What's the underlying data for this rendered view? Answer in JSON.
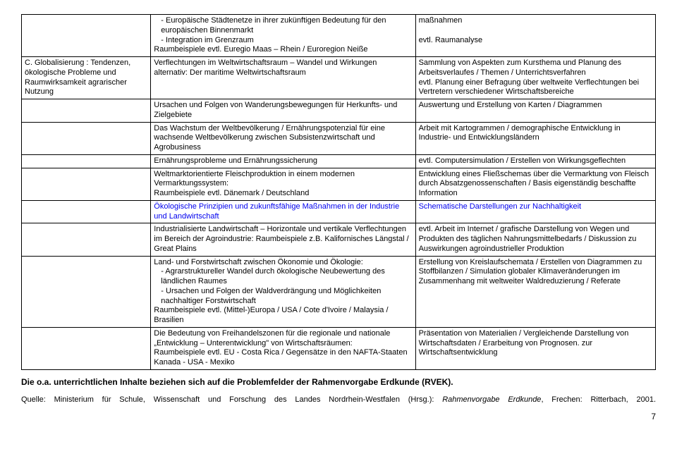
{
  "table": {
    "col_widths": [
      "20%",
      "42%",
      "38%"
    ],
    "border_color": "#000000",
    "background_color": "#ffffff",
    "font_size": 11,
    "rows": [
      {
        "col1": "",
        "col2_items": [
          "Europäische Städtenetze in ihrer zukünftigen Bedeutung für den europäischen Binnenmarkt",
          "Integration im Grenzraum"
        ],
        "col2_tail": "Raumbeispiele evtl. Euregio Maas – Rhein / Euroregion Neiße",
        "col3_a": "maßnahmen",
        "col3_b": "evtl. Raumanalyse"
      },
      {
        "col1": "C. Globalisierung : Tendenzen, ökologische Probleme und Raumwirksamkeit agrarischer Nutzung",
        "col2": "Verflechtungen im Weltwirtschaftsraum – Wandel und Wirkungen\nalternativ: Der maritime Weltwirtschaftsraum",
        "col3": "Sammlung von Aspekten zum Kursthema und Planung des Arbeitsverlaufes / Themen / Unterrichtsverfahren\nevtl. Planung einer Befragung über weltweite Verflechtungen bei Vertretern verschiedener Wirtschaftsbereiche"
      },
      {
        "col1": "",
        "col2": "Ursachen und Folgen von Wanderungsbewegungen für Herkunfts- und Zielgebiete",
        "col3": "Auswertung und Erstellung von Karten / Diagrammen"
      },
      {
        "col1": "",
        "col2": "Das Wachstum der Weltbevölkerung / Ernährungspotenzial für eine wachsende Weltbevölkerung zwischen Subsistenzwirtschaft und Agrobusiness",
        "col3": "Arbeit mit Kartogrammen / demographische Entwicklung in Industrie- und Entwicklungsländern"
      },
      {
        "col1": "",
        "col2": "Ernährungsprobleme und Ernährungssicherung",
        "col3": "evtl. Computersimulation / Erstellen von Wirkungsgeflechten"
      },
      {
        "col1": "",
        "col2": "Weltmarktorientierte Fleischproduktion in einem modernen Vermarktungssystem:\nRaumbeispiele evtl. Dänemark / Deutschland",
        "col3": "Entwicklung eines Fließschemas über die Vermarktung von Fleisch durch Absatzgenossenschaften / Basis eigenständig beschaffte Information"
      },
      {
        "col1": "",
        "col2_link": "Ökologische Prinzipien und zukunftsfähige Maßnahmen in der Industrie und Landwirtschaft",
        "col3_link": "Schematische Darstellungen zur Nachhaltigkeit"
      },
      {
        "col1": "",
        "col2": "Industrialisierte Landwirtschaft – Horizontale und vertikale Verflechtungen im Bereich der Agroindustrie: Raumbeispiele z.B. Kalifornisches Längstal / Great Plains",
        "col3": "evtl. Arbeit im Internet / grafische Darstellung von Wegen und Produkten des täglichen Nahrungsmittelbedarfs / Diskussion zu Auswirkungen agroindustrieller Produktion"
      },
      {
        "col1": "",
        "col2_pre": "Land- und Forstwirtschaft zwischen Ökonomie und Ökologie:",
        "col2_items": [
          "Agrarstruktureller Wandel durch ökologische Neubewertung des ländlichen Raumes",
          "Ursachen und Folgen der Waldverdrängung und Möglichkeiten nachhaltiger Forstwirtschaft"
        ],
        "col2_tail": "Raumbeispiele evtl. (Mittel-)Europa / USA / Cote d'Ivoire / Malaysia / Brasilien",
        "col3": "Erstellung von Kreislaufschemata / Erstellen von Diagrammen zu Stoffbilanzen / Simulation globaler Klimaveränderungen im Zusammenhang mit weltweiter Waldreduzierung / Referate"
      },
      {
        "col1": "",
        "col2": "Die Bedeutung von Freihandelszonen für die regionale und nationale „Entwicklung – Unterentwicklung\" von Wirtschaftsräumen:\nRaumbeispiele evtl. EU - Costa Rica / Gegensätze in den NAFTA-Staaten Kanada - USA - Mexiko",
        "col3": "Präsentation von Materialien / Vergleichende Darstellung von Wirtschaftsdaten / Erarbeitung von Prognosen. zur Wirtschaftsentwicklung"
      }
    ]
  },
  "footer_bold": "Die o.a. unterrichtlichen Inhalte beziehen sich auf die Problemfelder der Rahmenvorgabe Erdkunde (RVEK).",
  "footer_src_a": "Quelle: Ministerium für Schule, Wissenschaft und Forschung des Landes Nordrhein-Westfalen (Hrsg.): ",
  "footer_src_b": "Rahmenvorgabe Erdkunde",
  "footer_src_c": ", Frechen: Ritterbach, 2001.",
  "page_number": "7",
  "link_color": "#0000ee"
}
